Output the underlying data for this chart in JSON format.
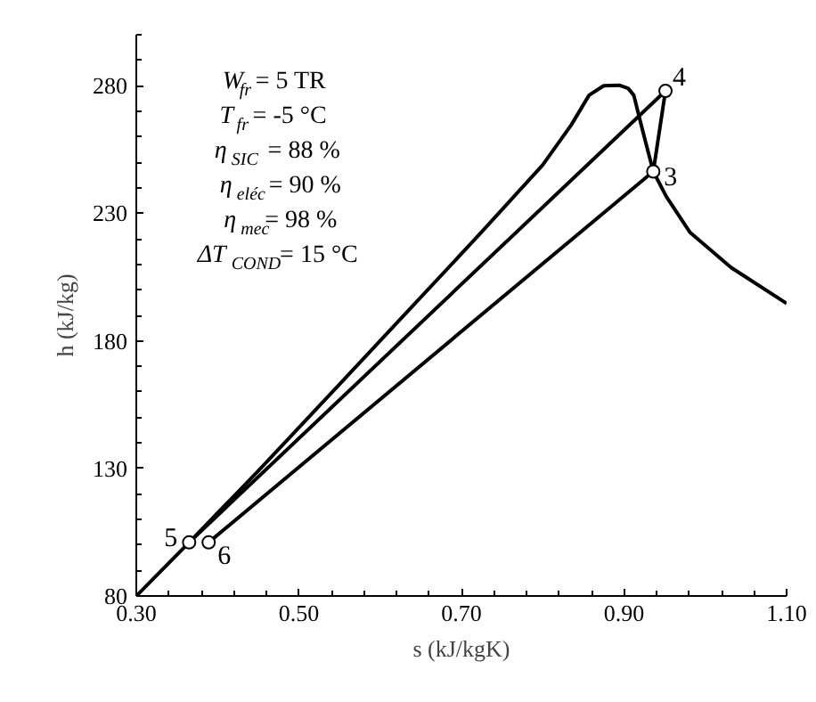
{
  "chart_data": {
    "type": "line",
    "xlabel": "s (kJ/kgK)",
    "ylabel": "h (kJ/kg)",
    "xlim": [
      0.3,
      1.1
    ],
    "xticks": [
      {
        "value": 0.3,
        "label": "0.30"
      },
      {
        "value": 0.5,
        "label": "0.50"
      },
      {
        "value": 0.7,
        "label": "0.70"
      },
      {
        "value": 0.9,
        "label": "0.90"
      },
      {
        "value": 1.1,
        "label": "1.10"
      }
    ],
    "ylim": [
      80,
      300
    ],
    "yticks": [
      80,
      130,
      180,
      230,
      280
    ],
    "grid": false,
    "series": [
      {
        "color": "#000000",
        "marker": "none",
        "x": [
          0.3,
          0.365,
          0.45,
          0.55,
          0.638,
          0.72,
          0.8,
          0.835,
          0.857,
          0.875,
          0.894,
          0.905,
          0.912,
          0.923,
          0.936,
          0.952,
          0.981,
          1.032,
          1.1
        ],
        "values": [
          80,
          101,
          129,
          163,
          193,
          221,
          249,
          264.6,
          276.3,
          280,
          280.2,
          279,
          276.3,
          262.3,
          246.4,
          236.6,
          222.6,
          208.7,
          194.7
        ]
      },
      {
        "color": "#000000",
        "marker": "circle",
        "x": [
          0.365,
          0.951,
          0.936,
          0.389
        ],
        "values": [
          101,
          278,
          246.4,
          101
        ]
      }
    ],
    "annotations": [
      {
        "text": "4",
        "x": 0.951,
        "y": 278
      },
      {
        "text": "3",
        "x": 0.936,
        "y": 246.4
      },
      {
        "text": "5",
        "x": 0.365,
        "y": 101
      },
      {
        "text": "6",
        "x": 0.389,
        "y": 101
      },
      "W$_{fr}$ = 5 TR",
      "T$_{fr}$ = -5 °C",
      "η$_{SIC}$ = 88 %",
      "η$_{eléc}$= 90 %",
      "η$_{mec}$= 98 %",
      "ΔT$_{COND}$= 15 °C"
    ]
  }
}
